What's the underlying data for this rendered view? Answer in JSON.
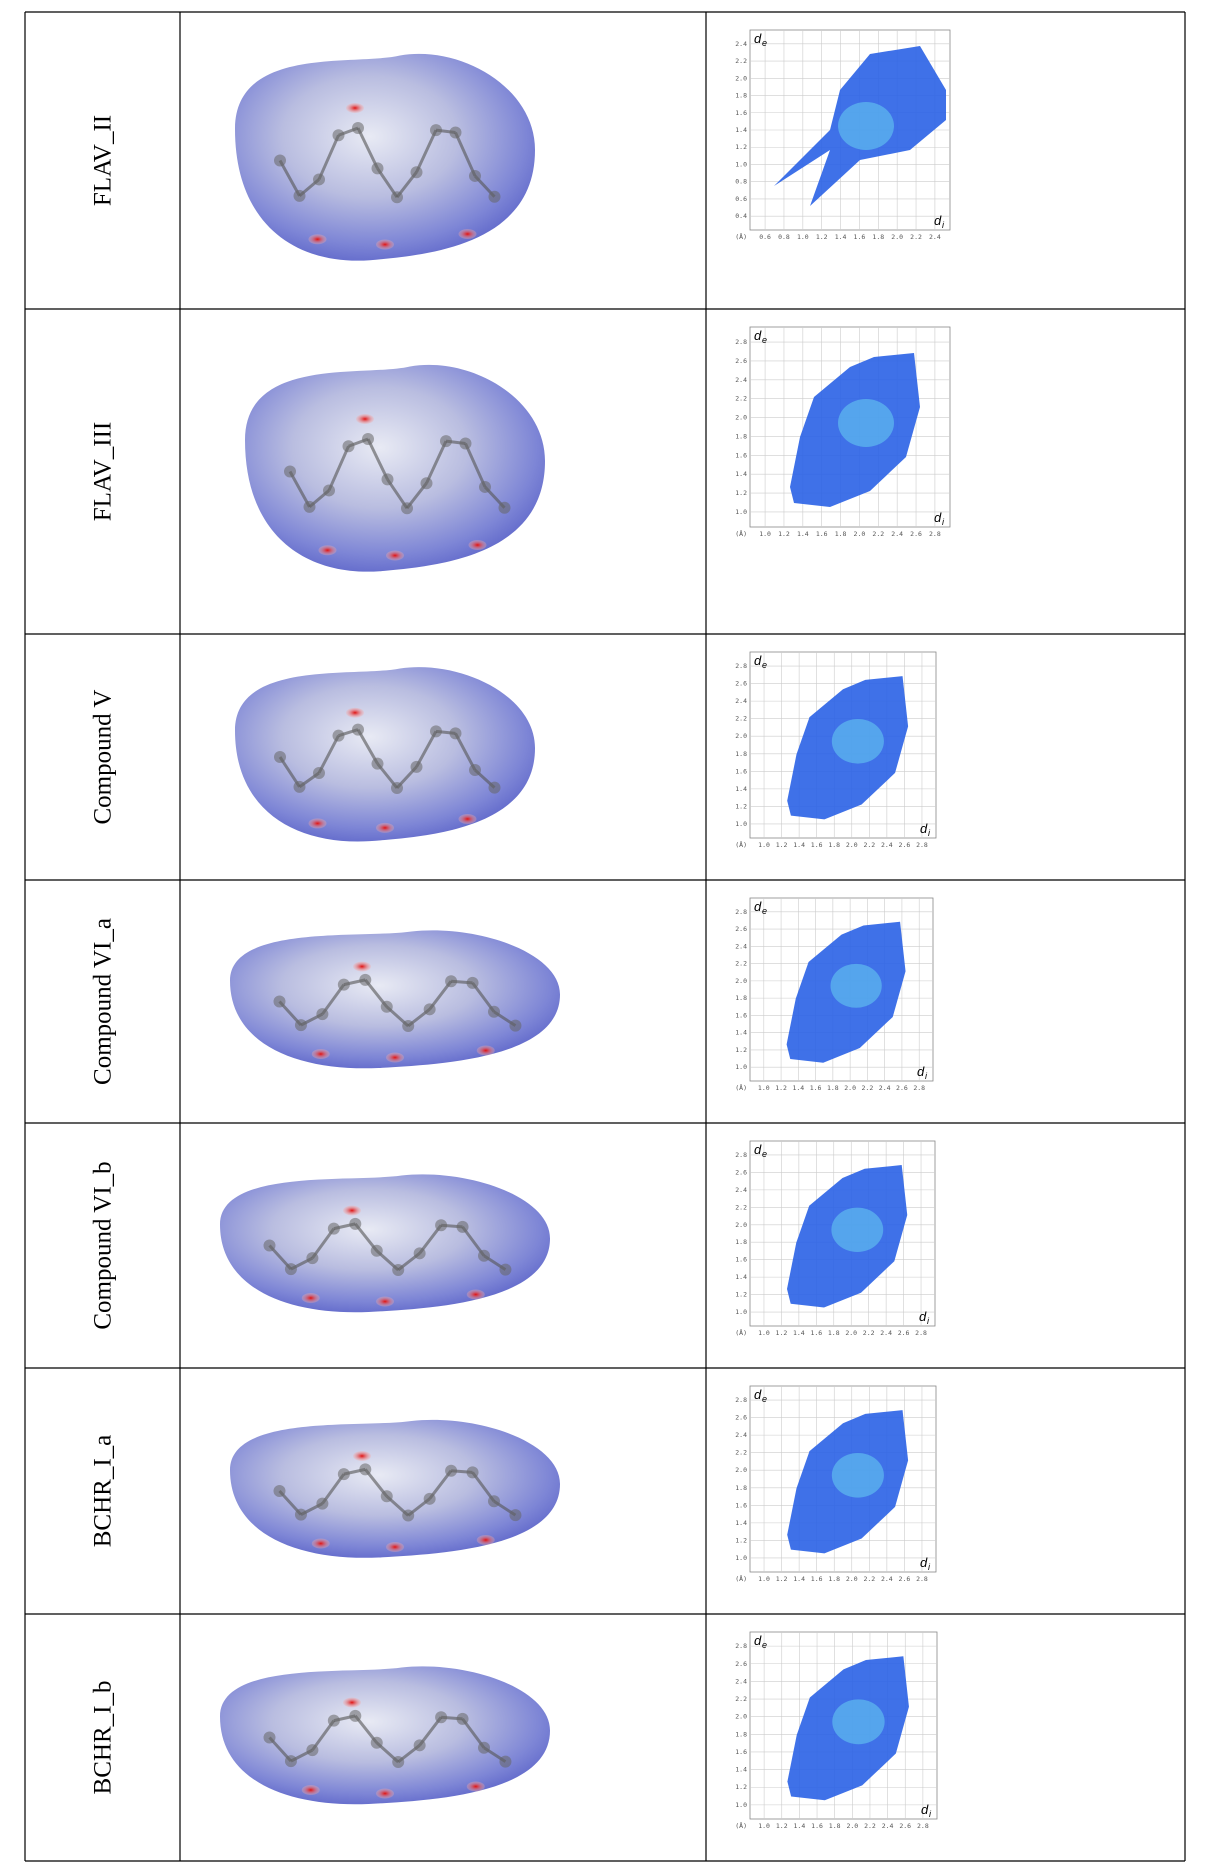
{
  "table": {
    "rows": [
      {
        "label": "FLAV_II",
        "plot": {
          "y_symbol": "d",
          "y_subscript": "e",
          "x_symbol": "d",
          "x_subscript": "i",
          "unit": "(Å)",
          "yticks": [
            "0.4",
            "0.6",
            "0.8",
            "1.0",
            "1.2",
            "1.4",
            "1.6",
            "1.8",
            "2.0",
            "2.2",
            "2.4"
          ],
          "xticks": [
            "0.6",
            "0.8",
            "1.0",
            "1.2",
            "1.4",
            "1.6",
            "1.8",
            "2.0",
            "2.2",
            "2.4"
          ]
        }
      },
      {
        "label": "FLAV_III",
        "plot": {
          "y_symbol": "d",
          "y_subscript": "e",
          "x_symbol": "d",
          "x_subscript": "i",
          "unit": "(Å)",
          "yticks": [
            "1.0",
            "1.2",
            "1.4",
            "1.6",
            "1.8",
            "2.0",
            "2.2",
            "2.4",
            "2.6",
            "2.8"
          ],
          "xticks": [
            "1.0",
            "1.2",
            "1.4",
            "1.6",
            "1.8",
            "2.0",
            "2.2",
            "2.4",
            "2.6",
            "2.8"
          ]
        }
      },
      {
        "label": "Compound V",
        "plot": {
          "y_symbol": "d",
          "y_subscript": "e",
          "x_symbol": "d",
          "x_subscript": "i",
          "unit": "(Å)",
          "yticks": [
            "1.0",
            "1.2",
            "1.4",
            "1.6",
            "1.8",
            "2.0",
            "2.2",
            "2.4",
            "2.6",
            "2.8"
          ],
          "xticks": [
            "1.0",
            "1.2",
            "1.4",
            "1.6",
            "1.8",
            "2.0",
            "2.2",
            "2.4",
            "2.6",
            "2.8"
          ]
        }
      },
      {
        "label": "Compound VI_a",
        "plot": {
          "y_symbol": "d",
          "y_subscript": "e",
          "x_symbol": "d",
          "x_subscript": "i",
          "unit": "(Å)",
          "yticks": [
            "1.0",
            "1.2",
            "1.4",
            "1.6",
            "1.8",
            "2.0",
            "2.2",
            "2.4",
            "2.6",
            "2.8"
          ],
          "xticks": [
            "1.0",
            "1.2",
            "1.4",
            "1.6",
            "1.8",
            "2.0",
            "2.2",
            "2.4",
            "2.6",
            "2.8"
          ]
        }
      },
      {
        "label": "Compound VI_b",
        "plot": {
          "y_symbol": "d",
          "y_subscript": "e",
          "x_symbol": "d",
          "x_subscript": "i",
          "unit": "(Å)",
          "yticks": [
            "1.0",
            "1.2",
            "1.4",
            "1.6",
            "1.8",
            "2.0",
            "2.2",
            "2.4",
            "2.6",
            "2.8"
          ],
          "xticks": [
            "1.0",
            "1.2",
            "1.4",
            "1.6",
            "1.8",
            "2.0",
            "2.2",
            "2.4",
            "2.6",
            "2.8"
          ]
        }
      },
      {
        "label": "BCHR_I_a",
        "plot": {
          "y_symbol": "d",
          "y_subscript": "e",
          "x_symbol": "d",
          "x_subscript": "i",
          "unit": "(Å)",
          "yticks": [
            "1.0",
            "1.2",
            "1.4",
            "1.6",
            "1.8",
            "2.0",
            "2.2",
            "2.4",
            "2.6",
            "2.8"
          ],
          "xticks": [
            "1.0",
            "1.2",
            "1.4",
            "1.6",
            "1.8",
            "2.0",
            "2.2",
            "2.4",
            "2.6",
            "2.8"
          ]
        }
      },
      {
        "label": "BCHR_I_b",
        "plot": {
          "y_symbol": "d",
          "y_subscript": "e",
          "x_symbol": "d",
          "x_subscript": "i",
          "unit": "(Å)",
          "yticks": [
            "1.0",
            "1.2",
            "1.4",
            "1.6",
            "1.8",
            "2.0",
            "2.2",
            "2.4",
            "2.6",
            "2.8"
          ],
          "xticks": [
            "1.0",
            "1.2",
            "1.4",
            "1.6",
            "1.8",
            "2.0",
            "2.2",
            "2.4",
            "2.6",
            "2.8"
          ]
        }
      }
    ]
  }
}
